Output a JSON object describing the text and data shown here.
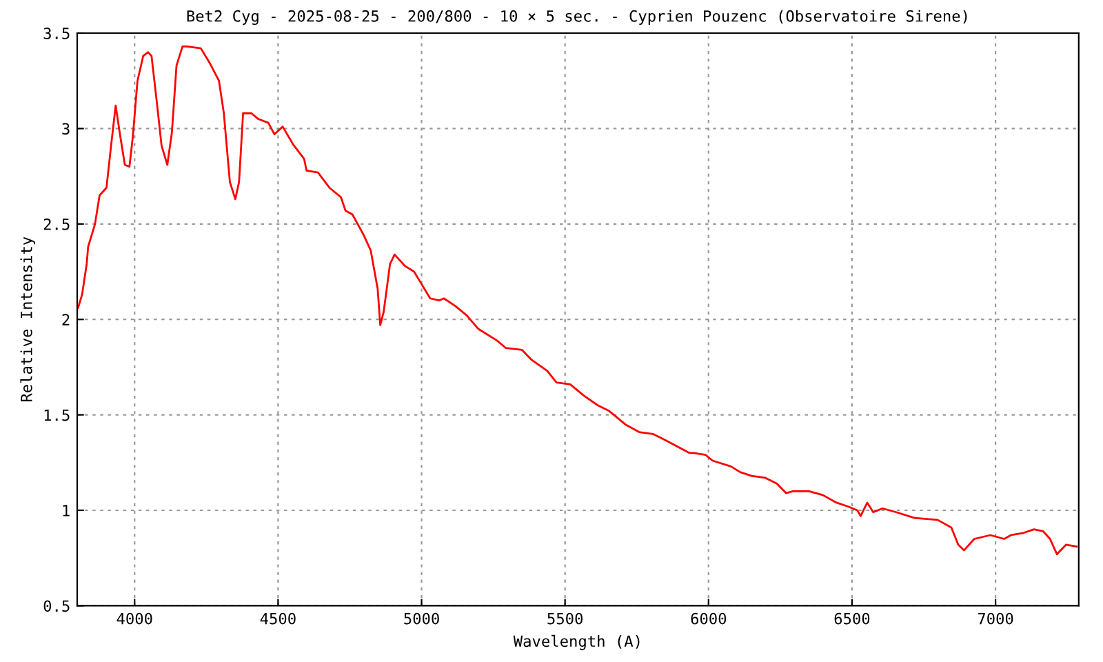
{
  "chart_data": {
    "type": "line",
    "title": "Bet2 Cyg - 2025-08-25 - 200/800 - 10 × 5 sec. - Cyprien Pouzenc (Observatoire Sirene)",
    "xlabel": "Wavelength (A)",
    "ylabel": "Relative Intensity",
    "series": [
      {
        "color": "#ff0000",
        "x": [
          3803,
          3817,
          3833,
          3838,
          3862,
          3878,
          3902,
          3918,
          3934,
          3950,
          3966,
          3982,
          3994,
          4010,
          4030,
          4047,
          4059,
          4078,
          4094,
          4114,
          4130,
          4146,
          4167,
          4183,
          4231,
          4263,
          4294,
          4311,
          4332,
          4351,
          4364,
          4378,
          4407,
          4431,
          4466,
          4487,
          4516,
          4551,
          4591,
          4599,
          4639,
          4679,
          4719,
          4735,
          4759,
          4799,
          4823,
          4847,
          4856,
          4868,
          4890,
          4906,
          4942,
          4974,
          4998,
          5030,
          5062,
          5078,
          5118,
          5158,
          5198,
          5262,
          5294,
          5350,
          5382,
          5438,
          5470,
          5518,
          5566,
          5614,
          5654,
          5710,
          5758,
          5806,
          5846,
          5934,
          5950,
          5990,
          6014,
          6078,
          6110,
          6150,
          6198,
          6238,
          6270,
          6294,
          6350,
          6398,
          6446,
          6486,
          6518,
          6530,
          6553,
          6574,
          6606,
          6654,
          6718,
          6798,
          6846,
          6870,
          6890,
          6926,
          6982,
          7030,
          7054,
          7094,
          7134,
          7166,
          7190,
          7214,
          7246,
          7283
        ],
        "values": [
          2.06,
          2.13,
          2.29,
          2.38,
          2.5,
          2.65,
          2.69,
          2.91,
          3.12,
          2.96,
          2.81,
          2.8,
          2.96,
          3.25,
          3.38,
          3.4,
          3.38,
          3.13,
          2.91,
          2.81,
          2.98,
          3.33,
          3.43,
          3.43,
          3.42,
          3.34,
          3.25,
          3.08,
          2.72,
          2.63,
          2.72,
          3.08,
          3.08,
          3.05,
          3.03,
          2.97,
          3.01,
          2.92,
          2.84,
          2.78,
          2.77,
          2.69,
          2.64,
          2.57,
          2.55,
          2.44,
          2.36,
          2.16,
          1.97,
          2.04,
          2.29,
          2.34,
          2.28,
          2.25,
          2.19,
          2.11,
          2.1,
          2.11,
          2.07,
          2.02,
          1.95,
          1.89,
          1.85,
          1.84,
          1.79,
          1.73,
          1.67,
          1.66,
          1.6,
          1.55,
          1.52,
          1.45,
          1.41,
          1.4,
          1.37,
          1.3,
          1.3,
          1.29,
          1.26,
          1.23,
          1.2,
          1.18,
          1.17,
          1.14,
          1.09,
          1.1,
          1.1,
          1.08,
          1.04,
          1.02,
          1.0,
          0.97,
          1.04,
          0.99,
          1.01,
          0.99,
          0.96,
          0.95,
          0.91,
          0.82,
          0.79,
          0.85,
          0.87,
          0.85,
          0.87,
          0.88,
          0.9,
          0.89,
          0.85,
          0.77,
          0.82,
          0.81
        ]
      }
    ],
    "xlim": [
      3800,
      7290
    ],
    "xticks": [
      4000,
      4500,
      5000,
      5500,
      6000,
      6500,
      7000
    ],
    "ylim": [
      0.5,
      3.5
    ],
    "yticks": [
      0.5,
      1,
      1.5,
      2,
      2.5,
      3,
      3.5
    ],
    "grid": true,
    "line_style": "solid"
  }
}
